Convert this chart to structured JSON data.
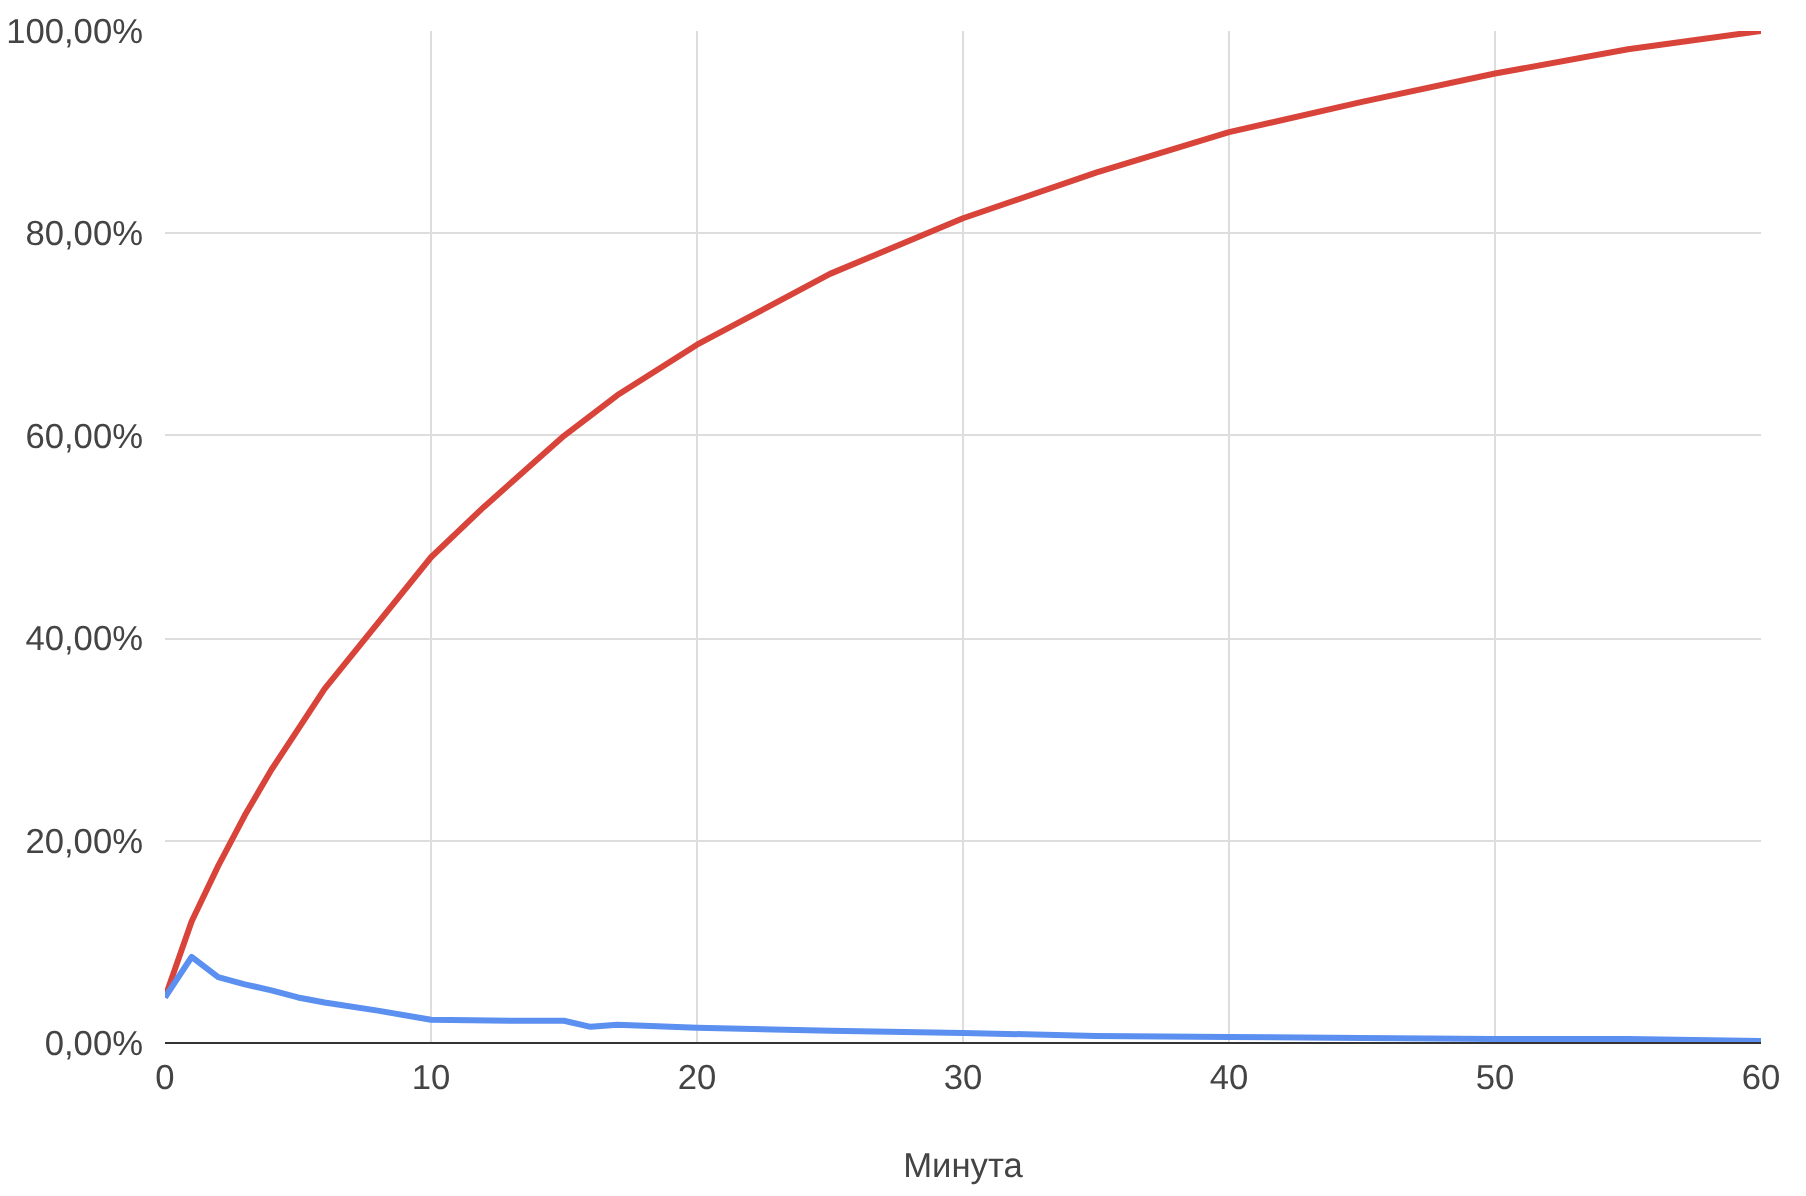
{
  "chart_data": {
    "type": "line",
    "xlabel": "Минута",
    "xlim": [
      0,
      60
    ],
    "xticks": [
      0,
      10,
      20,
      30,
      40,
      50,
      60
    ],
    "ylim": [
      0,
      100
    ],
    "yticks": [
      {
        "value": 0,
        "label": "0,00%"
      },
      {
        "value": 20,
        "label": "20,00%"
      },
      {
        "value": 40,
        "label": "40,00%"
      },
      {
        "value": 60,
        "label": "60,00%"
      },
      {
        "value": 80,
        "label": "80,00%"
      },
      {
        "value": 100,
        "label": "100,00%"
      }
    ],
    "grid": true,
    "marker": "none",
    "line_style": "solid",
    "series": [
      {
        "color": "#d9443a",
        "x": [
          0,
          1,
          2,
          3,
          4,
          5,
          6,
          8,
          10,
          12,
          15,
          17,
          20,
          25,
          30,
          35,
          40,
          45,
          50,
          55,
          60
        ],
        "values": [
          4.5,
          12,
          17.5,
          22.5,
          27,
          31,
          35,
          41.5,
          48,
          53,
          60,
          64,
          69,
          76,
          81.5,
          86,
          90,
          93,
          95.8,
          98.2,
          100
        ]
      },
      {
        "color": "#5b8ff0",
        "x": [
          0,
          1,
          2,
          3,
          4,
          5,
          6,
          8,
          10,
          13,
          15,
          16,
          17,
          20,
          25,
          30,
          35,
          40,
          45,
          50,
          55,
          60
        ],
        "values": [
          4.5,
          8.5,
          6.5,
          5.8,
          5.2,
          4.5,
          4,
          3.2,
          2.3,
          2.2,
          2.2,
          1.6,
          1.8,
          1.5,
          1.2,
          1,
          0.7,
          0.6,
          0.5,
          0.4,
          0.4,
          0.2
        ]
      }
    ]
  }
}
